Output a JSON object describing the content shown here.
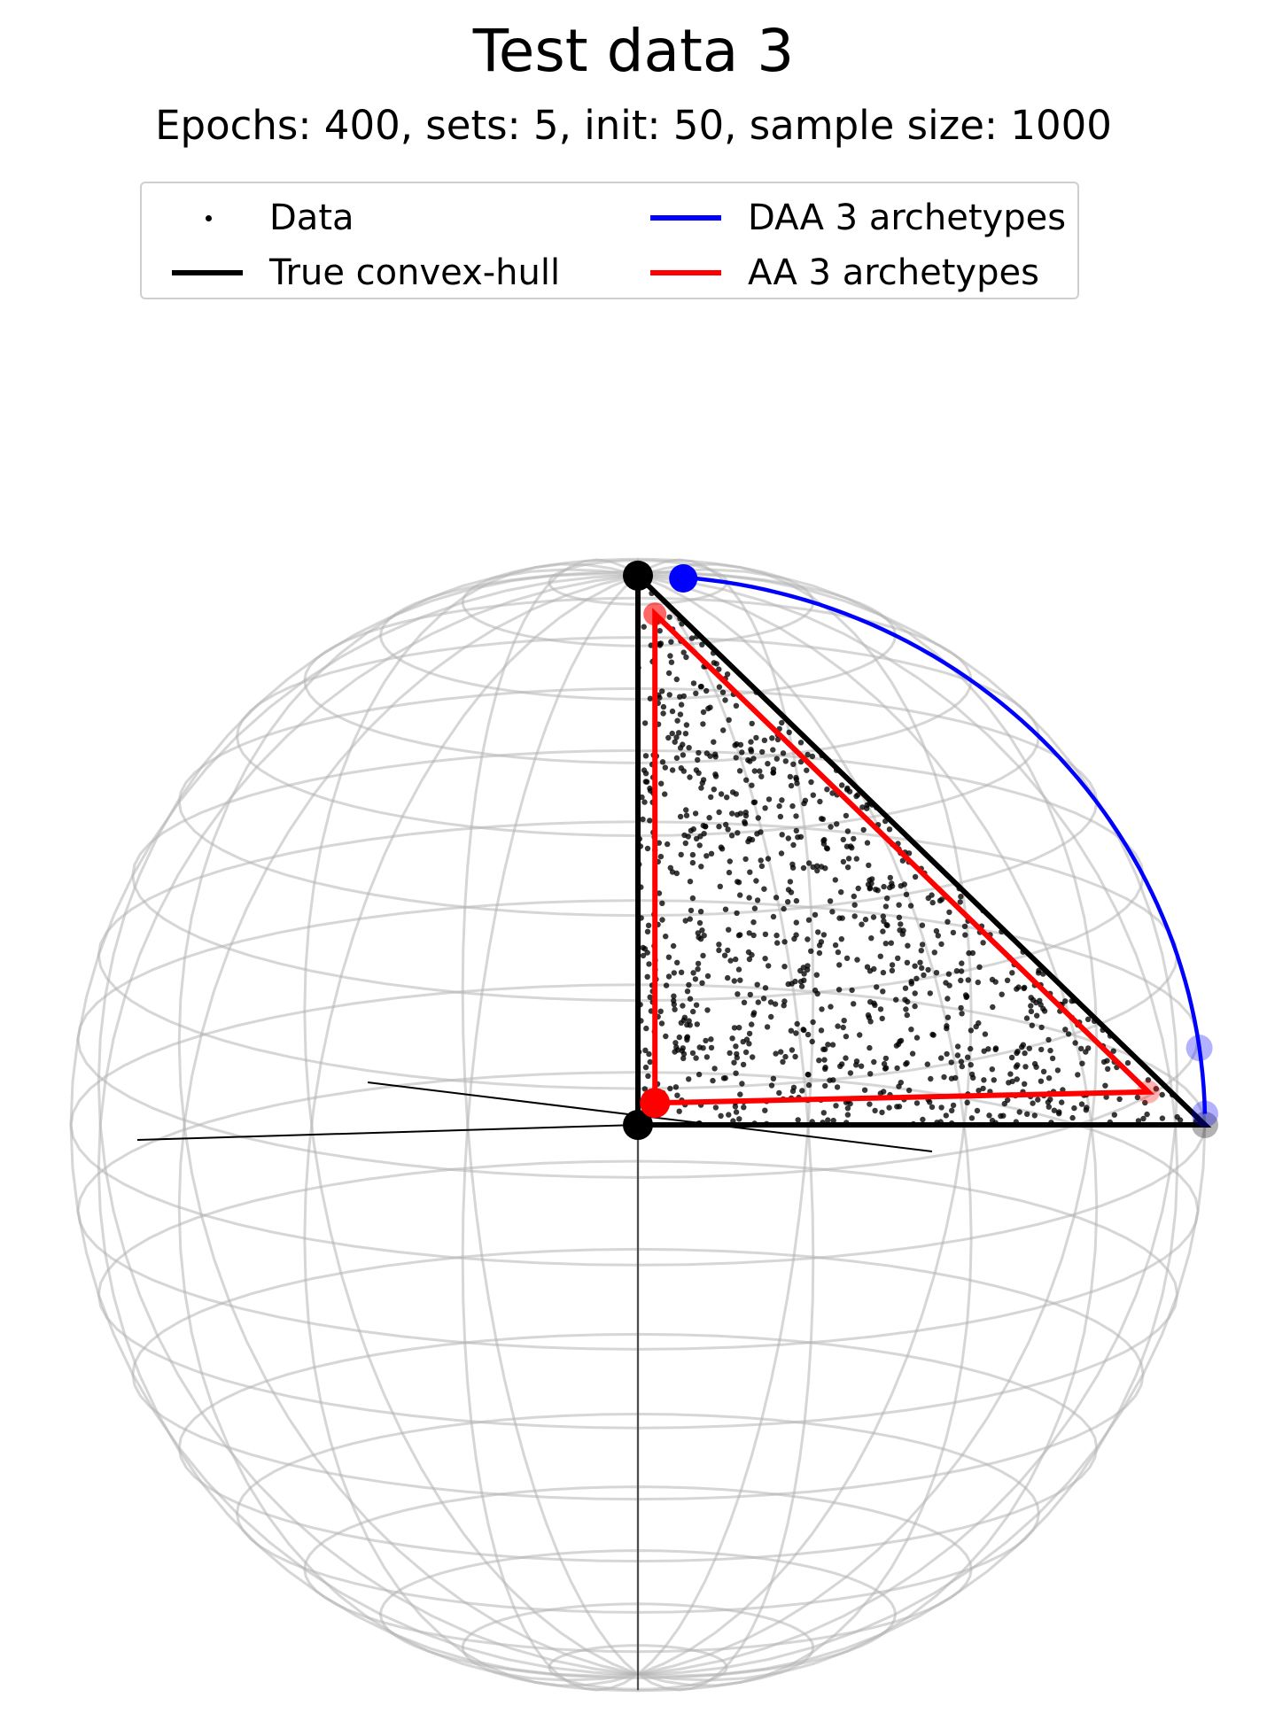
{
  "chart_data": {
    "type": "scatter",
    "title": "Test data 3",
    "subtitle": "Epochs: 400, sets: 5, init: 50, sample size: 1000",
    "legend": {
      "placement": "top",
      "entries": [
        {
          "label": "Data",
          "marker": "dot",
          "color": "#000000"
        },
        {
          "label": "True convex-hull",
          "marker": "line",
          "color": "#000000"
        },
        {
          "label": "DAA 3 archetypes",
          "marker": "line",
          "color": "#0000ff"
        },
        {
          "label": "AA 3 archetypes",
          "marker": "line",
          "color": "#ff0000"
        }
      ]
    },
    "sample_size": 1000,
    "true_hull_vertices": [
      [
        0,
        0,
        0
      ],
      [
        1,
        0,
        0
      ],
      [
        0,
        0,
        1
      ]
    ],
    "daa_archetypes": [
      [
        0.08,
        0,
        0.995
      ],
      [
        1,
        0,
        0.02
      ],
      [
        0.99,
        0,
        0.14
      ]
    ],
    "aa_archetypes": [
      [
        0.03,
        0,
        0.04
      ],
      [
        0.9,
        0,
        0.06
      ],
      [
        0.03,
        0,
        0.93
      ]
    ],
    "colors": {
      "data": "#000000",
      "true_hull": "#000000",
      "daa": "#0000ff",
      "aa": "#ff0000",
      "sphere_grid": "#b4b4b4"
    }
  }
}
